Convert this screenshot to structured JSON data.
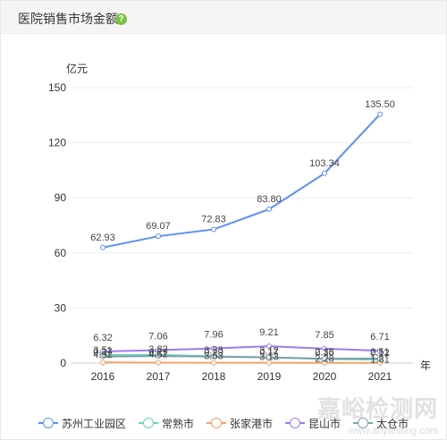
{
  "header": {
    "title": "医院销售市场金额",
    "help_icon": "help-circle-icon"
  },
  "watermark": {
    "text": "嘉峪检测网",
    "sub": "www.anytesting.com"
  },
  "chart_data": {
    "type": "line",
    "title": "",
    "ylabel": "亿元",
    "xlabel": "年",
    "ylim": [
      0,
      150
    ],
    "yticks": [
      "0",
      "30",
      "60",
      "90",
      "120",
      "150"
    ],
    "categories": [
      "2016",
      "2017",
      "2018",
      "2019",
      "2020",
      "2021"
    ],
    "legend_position": "bottom",
    "grid": true,
    "series": [
      {
        "name": "苏州工业园区",
        "color": "#5b8ff9",
        "values": [
          62.93,
          69.07,
          72.83,
          83.8,
          103.34,
          135.5
        ],
        "labels": [
          "62.93",
          "69.07",
          "72.83",
          "83.80",
          "103.34",
          "135.50"
        ]
      },
      {
        "name": "常熟市",
        "color": "#69d6b5",
        "values": [
          4.32,
          4.52,
          3.63,
          3.13,
          2.28,
          1.81
        ],
        "labels": [
          "4.32",
          "4.52",
          "3.63",
          "3.13",
          "2.28",
          "1.81"
        ]
      },
      {
        "name": "张家港市",
        "color": "#f6a06a",
        "values": [
          0.37,
          0.27,
          0.19,
          0.17,
          0.15,
          0.12
        ],
        "labels": [
          "0.37",
          "0.27",
          "0.19",
          "0.17",
          "0.15",
          "0.12"
        ]
      },
      {
        "name": "昆山市",
        "color": "#9b7cf2",
        "values": [
          6.32,
          7.06,
          7.96,
          9.21,
          7.85,
          6.71
        ],
        "labels": [
          "6.32",
          "7.06",
          "7.96",
          "9.21",
          "7.85",
          "6.71"
        ]
      },
      {
        "name": "太仓市",
        "color": "#7d9fb0",
        "values": [
          3.51,
          3.82,
          3.53,
          3.12,
          2.38,
          2.51
        ],
        "labels": [
          "3.51",
          "3.82",
          "3.53",
          "3.12",
          "2.38",
          "2.51"
        ]
      }
    ]
  }
}
